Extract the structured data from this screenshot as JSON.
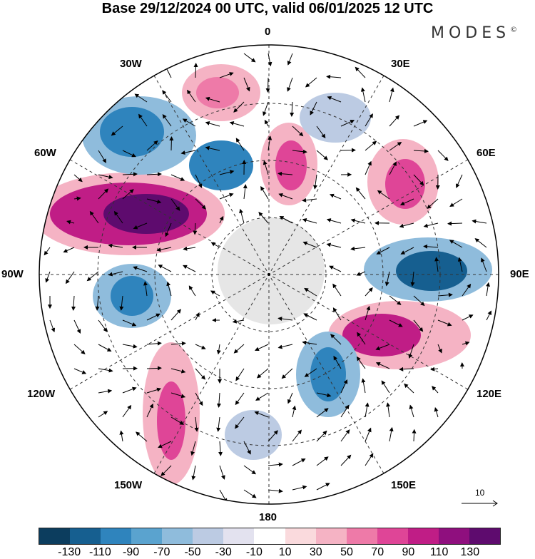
{
  "title": "Base 29/12/2024 00 UTC, valid 06/01/2025 12 UTC",
  "brand": "MODES",
  "brand_mark": "©",
  "longitude_labels": {
    "lon_0": "0",
    "lon_30e": "30E",
    "lon_60e": "60E",
    "lon_90e": "90E",
    "lon_120e": "120E",
    "lon_150e": "150E",
    "lon_180": "180",
    "lon_150w": "150W",
    "lon_120w": "120W",
    "lon_90w": "90W",
    "lon_60w": "60W",
    "lon_30w": "30W"
  },
  "vector_scale_label": "10",
  "colorbar": {
    "labels": [
      "-130",
      "-110",
      "-90",
      "-70",
      "-50",
      "-30",
      "-10",
      "10",
      "30",
      "50",
      "70",
      "90",
      "110",
      "130"
    ],
    "colors": [
      "#0c3d5e",
      "#165f90",
      "#2f84bd",
      "#5aa3cf",
      "#8fbcdc",
      "#bccbe3",
      "#e3e2ef",
      "#ffffff",
      "#fadadd",
      "#f5b3c4",
      "#ee7aa8",
      "#df4597",
      "#c01d86",
      "#8f0f7e",
      "#5e0b6e"
    ]
  }
}
